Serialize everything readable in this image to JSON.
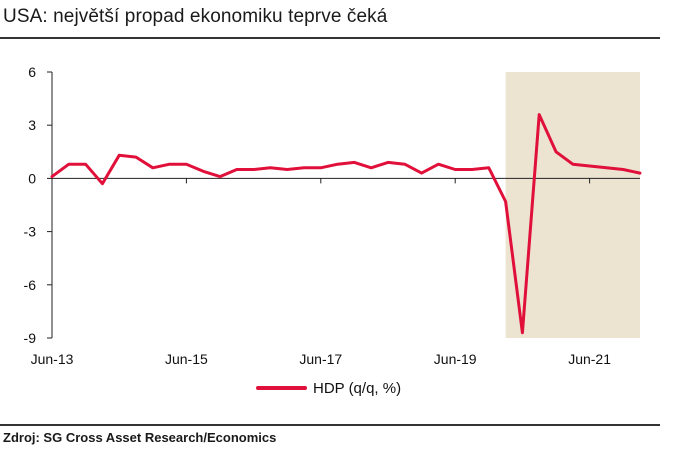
{
  "title": "USA: největší propad ekonomiku teprve čeká",
  "source": "Zdroj: SG Cross Asset Research/Economics",
  "colors": {
    "series": "#e0103a",
    "forecast_band": "#ece3d0",
    "axis": "#222222"
  },
  "chart_data": {
    "type": "line",
    "title": "USA: největší propad ekonomiku teprve čeká",
    "xlabel": "",
    "ylabel": "",
    "ylim": [
      -9,
      6
    ],
    "yticks": [
      6,
      3,
      0,
      -3,
      -6,
      -9
    ],
    "xticks": [
      {
        "x": "2013-06",
        "label": "Jun-13"
      },
      {
        "x": "2015-06",
        "label": "Jun-15"
      },
      {
        "x": "2017-06",
        "label": "Jun-17"
      },
      {
        "x": "2019-06",
        "label": "Jun-19"
      },
      {
        "x": "2021-06",
        "label": "Jun-21"
      }
    ],
    "xlim": [
      "2013-06",
      "2022-03"
    ],
    "shaded_region": {
      "from": "2020-03",
      "to": "2022-03"
    },
    "grid": false,
    "legend": "bottom-center",
    "series": [
      {
        "name": "HDP (q/q, %)",
        "x": [
          "2013-06",
          "2013-09",
          "2013-12",
          "2014-03",
          "2014-06",
          "2014-09",
          "2014-12",
          "2015-03",
          "2015-06",
          "2015-09",
          "2015-12",
          "2016-03",
          "2016-06",
          "2016-09",
          "2016-12",
          "2017-03",
          "2017-06",
          "2017-09",
          "2017-12",
          "2018-03",
          "2018-06",
          "2018-09",
          "2018-12",
          "2019-03",
          "2019-06",
          "2019-09",
          "2019-12",
          "2020-03",
          "2020-06",
          "2020-09",
          "2020-12",
          "2021-03",
          "2021-06",
          "2021-09",
          "2021-12",
          "2022-03"
        ],
        "values": [
          0.1,
          0.8,
          0.8,
          -0.3,
          1.3,
          1.2,
          0.6,
          0.8,
          0.8,
          0.4,
          0.1,
          0.5,
          0.5,
          0.6,
          0.5,
          0.6,
          0.6,
          0.8,
          0.9,
          0.6,
          0.9,
          0.8,
          0.3,
          0.8,
          0.5,
          0.5,
          0.6,
          -1.3,
          -8.7,
          3.6,
          1.5,
          0.8,
          0.7,
          0.6,
          0.5,
          0.3
        ]
      }
    ]
  }
}
